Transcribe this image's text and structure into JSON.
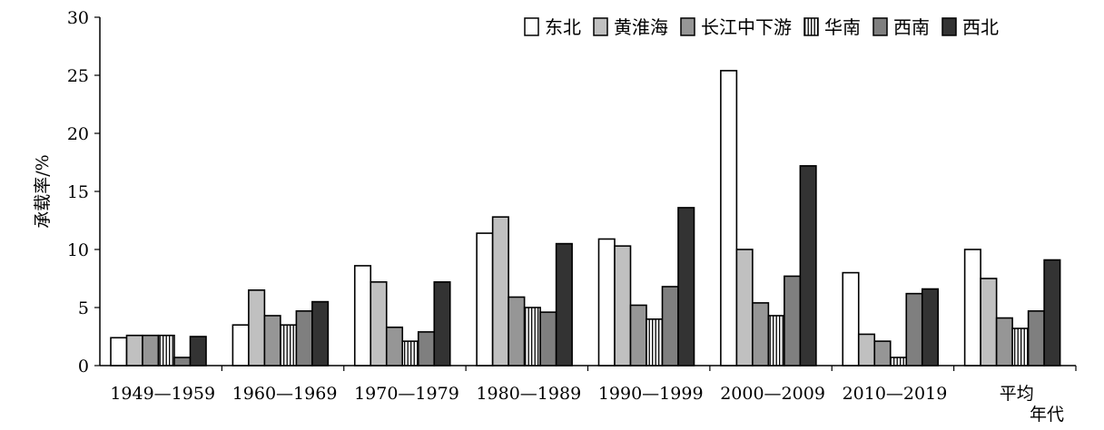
{
  "chart_data": {
    "type": "bar",
    "ylabel": "承载率/%",
    "xlabel": "年代",
    "ylim": [
      0,
      30
    ],
    "yticks": [
      0,
      5,
      10,
      15,
      20,
      25,
      30
    ],
    "grid": false,
    "legend_position": "top-right",
    "categories": [
      "1949—1959",
      "1960—1969",
      "1970—1979",
      "1980—1989",
      "1990—1999",
      "2000—2009",
      "2010—2019",
      "平均"
    ],
    "series": [
      {
        "name": "东北",
        "style": "white",
        "values": [
          2.4,
          3.5,
          8.6,
          11.4,
          10.9,
          25.4,
          8.0,
          10.0
        ]
      },
      {
        "name": "黄淮海",
        "style": "light",
        "values": [
          2.6,
          6.5,
          7.2,
          12.8,
          10.3,
          10.0,
          2.7,
          7.5
        ]
      },
      {
        "name": "长江中下游",
        "style": "mid",
        "values": [
          2.6,
          4.3,
          3.3,
          5.9,
          5.2,
          5.4,
          2.1,
          4.1
        ]
      },
      {
        "name": "华南",
        "style": "striped",
        "values": [
          2.6,
          3.5,
          2.1,
          5.0,
          4.0,
          4.3,
          0.7,
          3.2
        ]
      },
      {
        "name": "西南",
        "style": "gray",
        "values": [
          0.7,
          4.7,
          2.9,
          4.6,
          6.8,
          7.7,
          6.2,
          4.7
        ]
      },
      {
        "name": "西北",
        "style": "dark",
        "values": [
          2.5,
          5.5,
          7.2,
          10.5,
          13.6,
          17.2,
          6.6,
          9.1
        ]
      }
    ],
    "colors": {
      "white": "#ffffff",
      "light": "#c0c0c0",
      "mid": "#969696",
      "gray": "#7f7f7f",
      "dark": "#333333",
      "stroke": "#000000"
    }
  }
}
